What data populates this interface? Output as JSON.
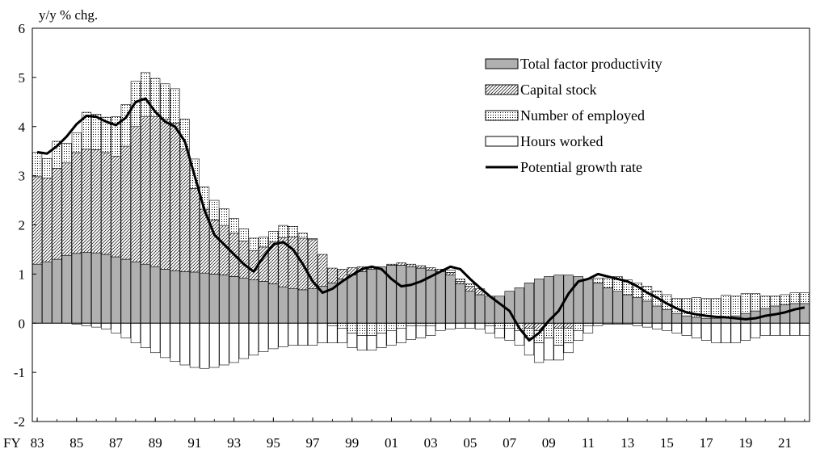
{
  "chart_data": {
    "type": "bar",
    "ylabel": "y/y % chg.",
    "ylim": [
      -2,
      6
    ],
    "yticks": [
      "6",
      "5",
      "4",
      "3",
      "2",
      "1",
      "0",
      "-1",
      "-2"
    ],
    "x_axis_prefix": "FY",
    "xtick_labels": [
      "83",
      "85",
      "87",
      "89",
      "91",
      "93",
      "95",
      "97",
      "99",
      "01",
      "03",
      "05",
      "07",
      "09",
      "11",
      "13",
      "15",
      "17",
      "19",
      "21"
    ],
    "x_start_year": 1983,
    "observations_per_year": 2,
    "series": [
      {
        "name": "Total factor productivity",
        "style": "gray-fill",
        "color": "#b0b0b0",
        "values": [
          1.2,
          1.25,
          1.3,
          1.38,
          1.42,
          1.44,
          1.43,
          1.4,
          1.35,
          1.3,
          1.25,
          1.2,
          1.15,
          1.1,
          1.07,
          1.05,
          1.04,
          1.02,
          1.0,
          0.98,
          0.95,
          0.92,
          0.88,
          0.85,
          0.8,
          0.74,
          0.7,
          0.68,
          0.7,
          0.75,
          0.82,
          0.9,
          0.98,
          1.05,
          1.1,
          1.15,
          1.18,
          1.18,
          1.15,
          1.12,
          1.08,
          1.05,
          0.98,
          0.8,
          0.65,
          0.58,
          0.55,
          0.55,
          0.65,
          0.72,
          0.82,
          0.9,
          0.95,
          0.98,
          0.98,
          0.95,
          0.9,
          0.82,
          0.72,
          0.65,
          0.58,
          0.52,
          0.45,
          0.35,
          0.28,
          0.2,
          0.15,
          0.12,
          0.1,
          0.1,
          0.12,
          0.15,
          0.2,
          0.25,
          0.3,
          0.35,
          0.38,
          0.4,
          0.4
        ]
      },
      {
        "name": "Capital stock",
        "style": "diagonal-hatch",
        "color": "#000000",
        "values": [
          1.78,
          1.7,
          1.85,
          1.88,
          2.05,
          2.1,
          2.1,
          2.07,
          2.05,
          2.3,
          2.75,
          3.0,
          3.05,
          3.05,
          3.0,
          2.5,
          1.7,
          1.3,
          1.1,
          1.0,
          0.88,
          0.75,
          0.6,
          0.7,
          0.85,
          1.0,
          1.05,
          1.05,
          1.0,
          0.65,
          0.3,
          0.2,
          0.15,
          0.1,
          0.05,
          0.0,
          0.02,
          0.05,
          0.05,
          0.05,
          0.05,
          0.05,
          0.05,
          0.05,
          0.1,
          0.12,
          0.0,
          0.0,
          0.0,
          0.0,
          -0.1,
          -0.15,
          0.0,
          -0.1,
          -0.1,
          0.0,
          0.0,
          0.0,
          0.0,
          0.0,
          0.0,
          0.0,
          0.0,
          0.0,
          0.0,
          0.0,
          0.0,
          0.0,
          0.0,
          0.0,
          0.0,
          0.0,
          0.0,
          0.0,
          0.0,
          0.0,
          0.0,
          0.0,
          0.0
        ]
      },
      {
        "name": "Number of employed",
        "style": "dotted",
        "color": "#000000",
        "values": [
          0.5,
          0.4,
          0.55,
          0.4,
          0.4,
          0.75,
          0.72,
          0.72,
          0.8,
          0.85,
          0.92,
          0.9,
          0.78,
          0.72,
          0.7,
          0.6,
          0.6,
          0.45,
          0.4,
          0.35,
          0.3,
          0.25,
          0.25,
          0.2,
          0.22,
          0.25,
          0.22,
          0.1,
          0.02,
          0.0,
          -0.05,
          -0.1,
          -0.2,
          -0.25,
          -0.25,
          -0.2,
          -0.15,
          -0.1,
          -0.05,
          -0.05,
          -0.05,
          0.0,
          0.05,
          0.05,
          0.05,
          0.0,
          -0.05,
          -0.1,
          -0.1,
          -0.15,
          -0.2,
          -0.25,
          -0.3,
          -0.35,
          -0.3,
          -0.15,
          -0.05,
          0.1,
          0.2,
          0.3,
          0.3,
          0.3,
          0.3,
          0.3,
          0.3,
          0.3,
          0.35,
          0.4,
          0.4,
          0.4,
          0.45,
          0.4,
          0.4,
          0.35,
          0.25,
          0.2,
          0.2,
          0.22,
          0.22
        ]
      },
      {
        "name": "Hours worked",
        "style": "white-fill",
        "color": "#ffffff",
        "values": [
          0.0,
          0.0,
          0.0,
          0.0,
          -0.02,
          -0.05,
          -0.08,
          -0.12,
          -0.2,
          -0.3,
          -0.4,
          -0.5,
          -0.6,
          -0.7,
          -0.78,
          -0.85,
          -0.9,
          -0.92,
          -0.9,
          -0.85,
          -0.8,
          -0.72,
          -0.65,
          -0.58,
          -0.52,
          -0.48,
          -0.45,
          -0.45,
          -0.45,
          -0.4,
          -0.35,
          -0.3,
          -0.3,
          -0.3,
          -0.3,
          -0.3,
          -0.3,
          -0.3,
          -0.28,
          -0.25,
          -0.2,
          -0.15,
          -0.12,
          -0.1,
          -0.1,
          -0.12,
          -0.15,
          -0.2,
          -0.25,
          -0.3,
          -0.35,
          -0.4,
          -0.45,
          -0.3,
          -0.2,
          -0.2,
          -0.15,
          -0.05,
          -0.02,
          -0.02,
          -0.02,
          -0.05,
          -0.08,
          -0.12,
          -0.15,
          -0.2,
          -0.25,
          -0.3,
          -0.35,
          -0.4,
          -0.4,
          -0.4,
          -0.35,
          -0.3,
          -0.25,
          -0.25,
          -0.25,
          -0.25,
          -0.25
        ]
      },
      {
        "name": "Potential growth rate",
        "style": "line",
        "color": "#000000",
        "values": [
          3.48,
          3.45,
          3.6,
          3.8,
          4.05,
          4.22,
          4.2,
          4.1,
          4.03,
          4.18,
          4.5,
          4.57,
          4.3,
          4.1,
          4.0,
          3.7,
          3.0,
          2.3,
          1.8,
          1.6,
          1.4,
          1.2,
          1.05,
          1.35,
          1.6,
          1.65,
          1.5,
          1.2,
          0.85,
          0.62,
          0.7,
          0.85,
          0.98,
          1.1,
          1.15,
          1.1,
          0.9,
          0.75,
          0.78,
          0.85,
          0.95,
          1.05,
          1.15,
          1.1,
          0.9,
          0.72,
          0.55,
          0.4,
          0.25,
          -0.1,
          -0.35,
          -0.2,
          0.05,
          0.25,
          0.6,
          0.85,
          0.9,
          1.0,
          0.95,
          0.9,
          0.85,
          0.75,
          0.62,
          0.52,
          0.4,
          0.3,
          0.22,
          0.18,
          0.15,
          0.13,
          0.12,
          0.1,
          0.08,
          0.1,
          0.15,
          0.18,
          0.22,
          0.28,
          0.32
        ]
      }
    ]
  }
}
